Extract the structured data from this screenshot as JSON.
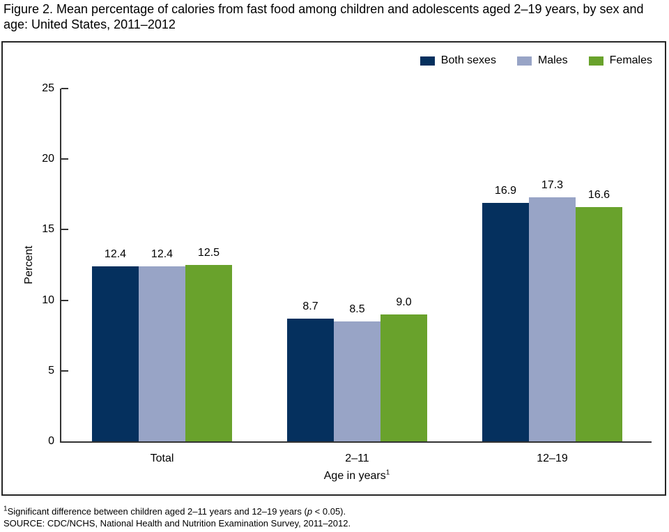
{
  "figure": {
    "title": "Figure 2. Mean percentage of calories from fast food among children and adolescents aged 2–19 years, by sex and age: United States, 2011–2012"
  },
  "chart_data": {
    "type": "bar",
    "title": "Figure 2. Mean percentage of calories from fast food among children and adolescents aged 2–19 years, by sex and age: United States, 2011–2012",
    "categories": [
      "Total",
      "2–11",
      "12–19"
    ],
    "series": [
      {
        "name": "Both sexes",
        "color": "#05305E",
        "values": [
          12.4,
          8.7,
          16.9
        ]
      },
      {
        "name": "Males",
        "color": "#98A4C6",
        "values": [
          12.4,
          8.5,
          17.3
        ]
      },
      {
        "name": "Females",
        "color": "#69A22C",
        "values": [
          12.5,
          9.0,
          16.6
        ]
      }
    ],
    "value_labels": [
      [
        "12.4",
        "8.7",
        "16.9"
      ],
      [
        "12.4",
        "8.5",
        "17.3"
      ],
      [
        "12.5",
        "9.0",
        "16.6"
      ]
    ],
    "xlabel": "Age in years",
    "xlabel_superscript": "1",
    "ylabel": "Percent",
    "ylim": [
      0,
      25
    ],
    "yticks": [
      0,
      5,
      10,
      15,
      20,
      25
    ],
    "grid": false,
    "legend_position": "top-right"
  },
  "colors": {
    "axis": "#333333",
    "frame_border": "#262626",
    "text": "#000000"
  },
  "footnotes": {
    "line1_sup": "1",
    "line1_pre": "Significant difference between children aged 2–11 years and 12–19 years (",
    "line1_italic": "p",
    "line1_post": " < 0.05).",
    "line2": "SOURCE: CDC/NCHS, National Health and Nutrition Examination Survey, 2011–2012."
  }
}
